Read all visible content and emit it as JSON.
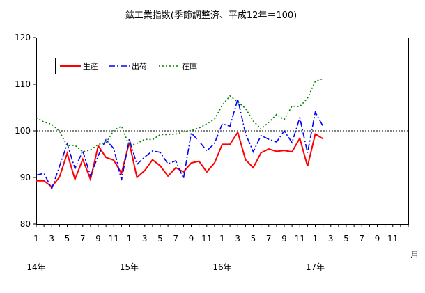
{
  "chart_data": {
    "type": "line",
    "title": "鉱工業指数(季節調整済、平成12年＝100)",
    "ylim": [
      80,
      120
    ],
    "y_ticks": [
      "80",
      "90",
      "100",
      "110",
      "120"
    ],
    "x_month_ticks": [
      "1",
      "3",
      "5",
      "7",
      "9",
      "11",
      "1",
      "3",
      "5",
      "7",
      "9",
      "11",
      "1",
      "3",
      "5",
      "7",
      "9",
      "11",
      "1",
      "3",
      "5",
      "7",
      "9",
      "11"
    ],
    "x_year_labels": [
      "14年",
      "15年",
      "16年",
      "17年"
    ],
    "x_unit": "月",
    "reference_line": 100,
    "grid": false,
    "legend_position": "top-left",
    "series": [
      {
        "name": "生産",
        "color": "#ff0000",
        "style": "solid",
        "values": [
          89.3,
          89.3,
          88.0,
          90.1,
          95.2,
          89.6,
          93.9,
          89.6,
          96.8,
          94.3,
          93.7,
          90.9,
          97.5,
          90.0,
          91.5,
          93.8,
          92.5,
          90.3,
          92.1,
          91.2,
          93.1,
          93.5,
          91.2,
          93.1,
          97.1,
          97.1,
          99.7,
          93.8,
          92.1,
          95.3,
          96.1,
          95.6,
          95.8,
          95.5,
          98.4,
          92.4,
          99.3,
          98.3
        ]
      },
      {
        "name": "出荷",
        "color": "#0000ff",
        "style": "dashdot",
        "values": [
          90.5,
          90.9,
          87.6,
          92.4,
          97.2,
          91.9,
          95.7,
          90.3,
          94.7,
          98.1,
          96.2,
          89.4,
          98.2,
          92.8,
          94.4,
          95.7,
          95.4,
          92.9,
          93.6,
          89.8,
          99.5,
          97.8,
          95.7,
          97.3,
          101.5,
          101.0,
          106.8,
          99.4,
          95.5,
          99.0,
          98.2,
          97.6,
          100.0,
          97.5,
          102.8,
          95.3,
          104.0,
          101.0
        ]
      },
      {
        "name": "在庫",
        "color": "#008000",
        "style": "dotted",
        "values": [
          102.8,
          101.9,
          101.4,
          99.9,
          96.8,
          96.9,
          95.5,
          95.9,
          97.1,
          97.4,
          100.1,
          101.0,
          96.8,
          97.3,
          98.2,
          98.1,
          99.2,
          99.2,
          99.3,
          99.8,
          100.1,
          100.6,
          101.5,
          102.5,
          105.5,
          107.5,
          106.2,
          104.8,
          102.1,
          100.4,
          101.8,
          103.5,
          102.4,
          105.3,
          105.2,
          107.0,
          110.6,
          111.2
        ]
      }
    ]
  }
}
